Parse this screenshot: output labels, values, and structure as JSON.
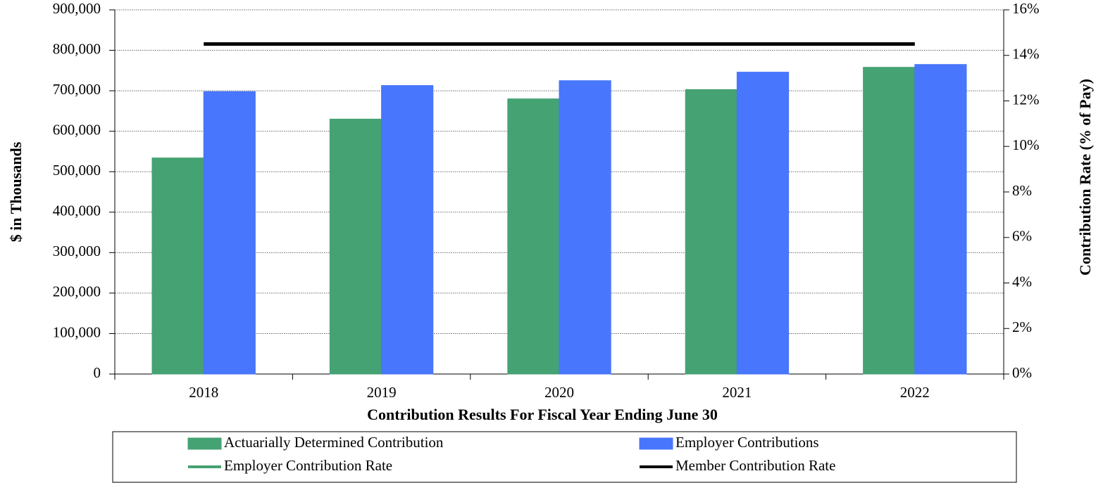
{
  "chart_data": {
    "type": "bar",
    "x_label": "Contribution Results For Fiscal Year Ending June 30",
    "y_label": "$ in Thousands",
    "y2_label": "Contribution Rate (% of Pay)",
    "categories": [
      "2018",
      "2019",
      "2020",
      "2021",
      "2022"
    ],
    "series": [
      {
        "name": "Actuarially Determined Contribution",
        "type": "bar",
        "color": "#45a273",
        "values": [
          534000,
          630000,
          680000,
          703000,
          758000
        ]
      },
      {
        "name": "Employer Contributions",
        "type": "bar",
        "color": "#4876fc",
        "values": [
          698000,
          713000,
          725000,
          746000,
          765000
        ]
      },
      {
        "name": "Employer Contribution Rate",
        "type": "line",
        "axis": "y2",
        "color": "#45a273",
        "values": [
          null,
          null,
          null,
          null,
          null
        ]
      },
      {
        "name": "Member Contribution Rate",
        "type": "line",
        "axis": "y2",
        "color": "#000000",
        "values": [
          14.5,
          14.5,
          14.5,
          14.5,
          14.5
        ]
      }
    ],
    "ylim": [
      0,
      900000
    ],
    "yticks": [
      0,
      {
        "value": 100000,
        "label": "100,000"
      },
      {
        "value": 200000,
        "label": "200,000"
      },
      {
        "value": 300000,
        "label": "300,000"
      },
      {
        "value": 400000,
        "label": "400,000"
      },
      {
        "value": 500000,
        "label": "500,000"
      },
      {
        "value": 600000,
        "label": "600,000"
      },
      {
        "value": 700000,
        "label": "700,000"
      },
      {
        "value": 800000,
        "label": "800,000"
      },
      {
        "value": 900000,
        "label": "900,000"
      }
    ],
    "y2lim": [
      0,
      16
    ],
    "y2ticks": [
      {
        "value": 0,
        "label": "0%"
      },
      {
        "value": 2,
        "label": "2%"
      },
      {
        "value": 4,
        "label": "4%"
      },
      {
        "value": 6,
        "label": "6%"
      },
      {
        "value": 8,
        "label": "8%"
      },
      {
        "value": 10,
        "label": "10%"
      },
      {
        "value": 12,
        "label": "12%"
      },
      {
        "value": 14,
        "label": "14%"
      },
      {
        "value": 16,
        "label": "16%"
      }
    ],
    "grid": true
  }
}
